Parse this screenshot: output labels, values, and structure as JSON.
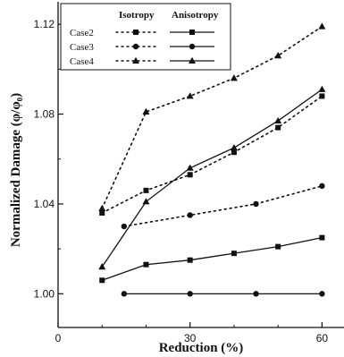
{
  "chart_data": {
    "type": "line",
    "xlabel": "Reduction (%)",
    "ylabel": "Normalized Damage (φ/φ₀)",
    "xlim": [
      0,
      65
    ],
    "ylim": [
      0.985,
      1.13
    ],
    "x_ticks": [
      0,
      30,
      60
    ],
    "y_ticks": [
      1.0,
      1.04,
      1.08,
      1.12
    ],
    "x_tick_labels": [
      "0",
      "30",
      "60"
    ],
    "y_tick_labels": [
      "1.00",
      "1.04",
      "1.08",
      "1.12"
    ],
    "grid": false,
    "legend": {
      "placement": "top-left",
      "column_headers": [
        "Isotropy",
        "Anisotropy"
      ],
      "rows": [
        "Case2",
        "Case3",
        "Case4"
      ]
    },
    "series": [
      {
        "name": "Case2",
        "group": "Isotropy",
        "marker": "square",
        "dash": "dotted",
        "x": [
          10,
          20,
          30,
          40,
          50,
          60
        ],
        "y": [
          1.036,
          1.046,
          1.053,
          1.063,
          1.074,
          1.088
        ]
      },
      {
        "name": "Case3",
        "group": "Isotropy",
        "marker": "circle",
        "dash": "dotted",
        "x": [
          15,
          30,
          45,
          60
        ],
        "y": [
          1.03,
          1.035,
          1.04,
          1.048
        ]
      },
      {
        "name": "Case4",
        "group": "Isotropy",
        "marker": "triangle",
        "dash": "dotted",
        "x": [
          10,
          20,
          30,
          40,
          50,
          60
        ],
        "y": [
          1.038,
          1.081,
          1.088,
          1.096,
          1.106,
          1.119
        ]
      },
      {
        "name": "Case2",
        "group": "Anisotropy",
        "marker": "square",
        "dash": "solid",
        "x": [
          10,
          20,
          30,
          40,
          50,
          60
        ],
        "y": [
          1.006,
          1.013,
          1.015,
          1.018,
          1.021,
          1.025
        ]
      },
      {
        "name": "Case3",
        "group": "Anisotropy",
        "marker": "circle",
        "dash": "solid",
        "x": [
          15,
          30,
          45,
          60
        ],
        "y": [
          1.0,
          1.0,
          1.0,
          1.0
        ]
      },
      {
        "name": "Case4",
        "group": "Anisotropy",
        "marker": "triangle",
        "dash": "solid",
        "x": [
          10,
          20,
          30,
          40,
          50,
          60
        ],
        "y": [
          1.012,
          1.041,
          1.056,
          1.065,
          1.077,
          1.091
        ]
      }
    ]
  }
}
